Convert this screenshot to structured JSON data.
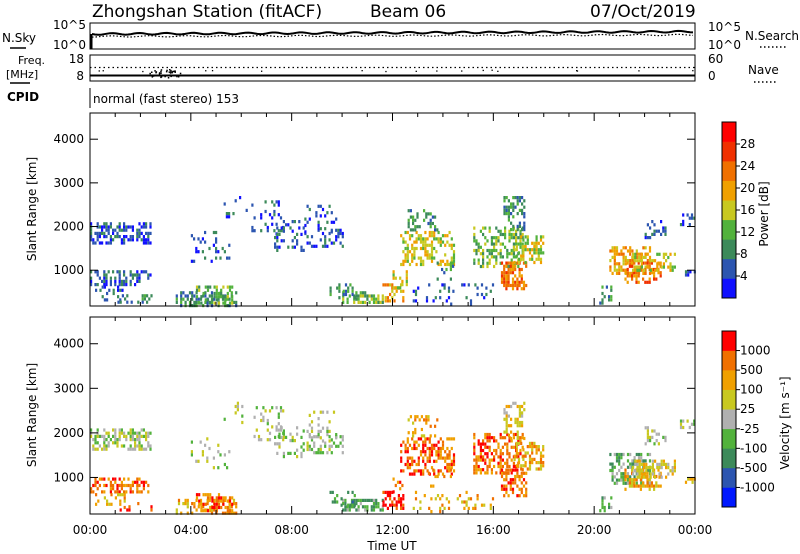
{
  "header": {
    "station": "Zhongshan Station (fitACF)",
    "beam": "Beam 06",
    "date": "07/Oct/2019"
  },
  "noise_panel": {
    "left_label": "N.Sky",
    "right_label": "N.Search",
    "left_ticks": [
      "10^5",
      "10^0"
    ],
    "right_ticks": [
      "10^5",
      "10^0"
    ]
  },
  "freq_panel": {
    "left_label_1": "Freq.",
    "left_label_2": "[MHz]",
    "right_label": "Nave",
    "left_ticks": [
      "18",
      "8"
    ],
    "right_ticks": [
      "60",
      "0"
    ]
  },
  "cpid": {
    "label": "CPID",
    "mode": "normal (fast stereo) 153"
  },
  "colors": {
    "power": [
      "#1010ff",
      "#2c55b0",
      "#3c8a5a",
      "#52b23c",
      "#c8c820",
      "#f0a000",
      "#f07000",
      "#f03000",
      "#ff0000"
    ],
    "velocity": [
      "#0018ff",
      "#2c55b0",
      "#3c8a5a",
      "#52b23c",
      "#b0b0b0",
      "#c8c820",
      "#f0a000",
      "#f07000",
      "#ff0000"
    ]
  },
  "chart_data": [
    {
      "type": "heatmap",
      "quantity": "power",
      "ylabel": "Slant Range [km]",
      "yticks": [
        "1000",
        "2000",
        "3000",
        "4000"
      ],
      "ylim": [
        180,
        4600
      ],
      "xlim": [
        0,
        24
      ],
      "colorbar_label": "Power [dB]",
      "colorbar_ticks": [
        "4",
        "8",
        "12",
        "16",
        "20",
        "24",
        "28"
      ],
      "colorbar_range": [
        0,
        32
      ]
    },
    {
      "type": "heatmap",
      "quantity": "velocity",
      "ylabel": "Slant Range [km]",
      "yticks": [
        "1000",
        "2000",
        "3000",
        "4000"
      ],
      "ylim": [
        180,
        4600
      ],
      "xlim": [
        0,
        24
      ],
      "xlabel": "Time UT",
      "xticks": [
        "00:00",
        "04:00",
        "08:00",
        "12:00",
        "16:00",
        "20:00",
        "00:00"
      ],
      "colorbar_label": "Velocity [m s⁻¹]",
      "colorbar_ticks": [
        "1000",
        "500",
        "100",
        "25",
        "-25",
        "-100",
        "-500",
        "-1000"
      ]
    }
  ]
}
